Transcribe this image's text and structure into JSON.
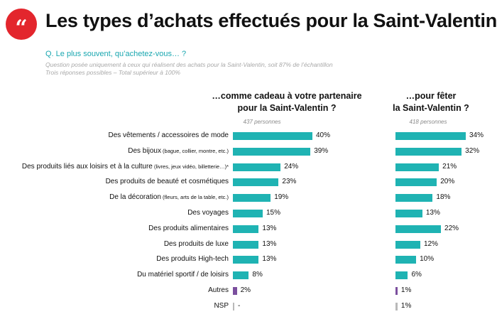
{
  "header": {
    "quote_glyph": "“",
    "title": "Les types d’achats effectués pour la Saint-Valentin"
  },
  "question": "Q. Le plus souvent, qu’achetez-vous… ?",
  "notes": [
    "Question posée uniquement à ceux qui réalisent des achats pour la Saint-Valentin, soit 87% de l’échantillon",
    "Trois réponses possibles – Total supérieur à 100%"
  ],
  "colors": {
    "teal": "#1fb3b3",
    "purple": "#7b4f9e",
    "grey": "#b9b9b9",
    "accent_red": "#e3262d"
  },
  "chart_data": [
    {
      "type": "bar",
      "orientation": "horizontal",
      "title_lines": [
        "…comme cadeau à votre partenaire",
        "pour la Saint-Valentin ?"
      ],
      "subtitle": "437 personnes",
      "categories": [
        {
          "label": "Des vêtements / accessoires de mode",
          "detail": ""
        },
        {
          "label": "Des bijoux",
          "detail": "(bague, collier, montre, etc.)"
        },
        {
          "label": "Des produits liés aux loisirs et à la culture",
          "detail": "(livres, jeux vidéo, billetterie…)*"
        },
        {
          "label": "Des produits de beauté et cosmétiques",
          "detail": ""
        },
        {
          "label": "De la décoration",
          "detail": "(fleurs, arts de la table, etc.)"
        },
        {
          "label": "Des voyages",
          "detail": ""
        },
        {
          "label": "Des produits alimentaires",
          "detail": ""
        },
        {
          "label": "Des produits de luxe",
          "detail": ""
        },
        {
          "label": "Des produits High-tech",
          "detail": ""
        },
        {
          "label": "Du matériel sportif / de loisirs",
          "detail": ""
        },
        {
          "label": "Autres",
          "detail": ""
        },
        {
          "label": "NSP",
          "detail": ""
        }
      ],
      "values": [
        40,
        39,
        24,
        23,
        19,
        15,
        13,
        13,
        13,
        8,
        2,
        0
      ],
      "value_labels": [
        "40%",
        "39%",
        "24%",
        "23%",
        "19%",
        "15%",
        "13%",
        "13%",
        "13%",
        "8%",
        "2%",
        "-"
      ],
      "bar_colors": [
        "teal",
        "teal",
        "teal",
        "teal",
        "teal",
        "teal",
        "teal",
        "teal",
        "teal",
        "teal",
        "purple",
        "grey"
      ]
    },
    {
      "type": "bar",
      "orientation": "horizontal",
      "title_lines": [
        "…pour fêter",
        "la Saint-Valentin ?"
      ],
      "subtitle": "418 personnes",
      "values": [
        34,
        32,
        21,
        20,
        18,
        13,
        22,
        12,
        10,
        6,
        1,
        1
      ],
      "value_labels": [
        "34%",
        "32%",
        "21%",
        "20%",
        "18%",
        "13%",
        "22%",
        "12%",
        "10%",
        "6%",
        "1%",
        "1%"
      ],
      "bar_colors": [
        "teal",
        "teal",
        "teal",
        "teal",
        "teal",
        "teal",
        "teal",
        "teal",
        "teal",
        "teal",
        "purple",
        "grey"
      ]
    }
  ]
}
